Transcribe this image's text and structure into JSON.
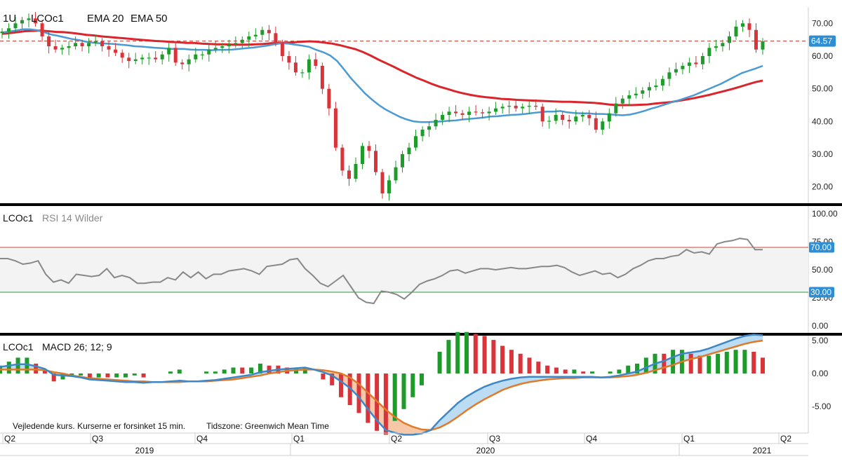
{
  "colors": {
    "up": "#1e9b2a",
    "down": "#d9343a",
    "ema20": "#4a9ad4",
    "ema50": "#d9252b",
    "rsi": "#888888",
    "macd": "#3d87c9",
    "signal": "#e07a2a",
    "ref_line": "#c0392b",
    "badge": "#2c8fd6"
  },
  "main_panel": {
    "interval": "1U",
    "ric": "LCOc1",
    "ema20_label": "EMA 20",
    "ema50_label": "EMA 50",
    "y_ticks": [
      "70.00",
      "60.00",
      "50.00",
      "40.00",
      "30.00",
      "20.00"
    ],
    "last_price_badge": "64.57"
  },
  "rsi_panel": {
    "ric": "LCOc1",
    "label": "RSI 14 Wilder",
    "y_ticks": [
      "100.00",
      "75.00",
      "50.00",
      "25.00",
      "0.00"
    ],
    "upper_badge": "70.00",
    "lower_badge": "30.00"
  },
  "macd_panel": {
    "ric": "LCOc1",
    "label": "MACD 26; 12; 9",
    "y_ticks": [
      "5.00",
      "0.00",
      "-5.00"
    ]
  },
  "footer": {
    "disclaimer": "Vejledende kurs. Kurserne er forsinket 15 min.",
    "timezone": "Tidszone: Greenwich Mean Time"
  },
  "x_axis": {
    "periods": [
      "Q2",
      "Q3",
      "Q4",
      "Q1",
      "Q2",
      "Q3",
      "Q4",
      "Q1",
      "Q2"
    ],
    "years": [
      "2019",
      "2020",
      "2021"
    ]
  },
  "chart_data": [
    {
      "type": "candlestick",
      "title": "LCOc1",
      "interval": "1U",
      "x_range": [
        "2019-04",
        "2021-03"
      ],
      "ylim": [
        15,
        75
      ],
      "y_ticks": [
        70,
        60,
        50,
        40,
        30,
        20
      ],
      "reference_line": {
        "value": 64.57,
        "style": "dashed"
      },
      "close": [
        67.5,
        68.5,
        70,
        71,
        71.5,
        70,
        66,
        63,
        62,
        62.5,
        63,
        64,
        63,
        64,
        64.5,
        63,
        62,
        61,
        59.5,
        58.5,
        59,
        59.5,
        59.5,
        59,
        60.5,
        62.5,
        58,
        57.5,
        59,
        60.5,
        60.5,
        62,
        62.5,
        63,
        63.5,
        64,
        65,
        66,
        66.5,
        68,
        67,
        64,
        60,
        58,
        55,
        55,
        59,
        57,
        50,
        44,
        32,
        25,
        22.5,
        27,
        32.5,
        31,
        24.5,
        18,
        22,
        26,
        30,
        32,
        35.5,
        37.5,
        38.5,
        40.5,
        42,
        43,
        42.5,
        42,
        43,
        42.8,
        42.5,
        43,
        44,
        44.5,
        44.8,
        44,
        44.5,
        44.8,
        44.5,
        40,
        40.2,
        42,
        40.5,
        40,
        41.5,
        42,
        41,
        37.5,
        40,
        42.5,
        45.5,
        47,
        48,
        48.5,
        49.5,
        50.5,
        51,
        53,
        55,
        56,
        57,
        58,
        57.5,
        60,
        62.5,
        63,
        64,
        66,
        69,
        70,
        68,
        62,
        64.5
      ],
      "ema20": [
        67.2,
        67.5,
        67.8,
        68.2,
        68.2,
        67.9,
        67.3,
        66.6,
        66.2,
        65.7,
        65.2,
        64.9,
        64.4,
        64.1,
        63.9,
        63.8,
        63.7,
        63.5,
        63.3,
        63,
        62.9,
        62.7,
        62.5,
        62.4,
        62.2,
        62.2,
        62.2,
        62,
        61.9,
        61.9,
        61.8,
        61.9,
        61.9,
        62,
        62.2,
        62.4,
        62.6,
        62.9,
        63.2,
        63.6,
        63.9,
        63.8,
        63.5,
        63.2,
        62.8,
        61.9,
        61.2,
        60.2,
        58.5,
        55.9,
        53.2,
        50.9,
        48.6,
        46.7,
        45,
        43.6,
        42.5,
        41.4,
        40.6,
        40,
        39.8,
        39.8,
        39.9,
        40,
        40.2,
        40.3,
        40.6,
        40.8,
        41,
        41.2,
        41.5,
        41.6,
        41.8,
        42,
        42.1,
        42.3,
        42.6,
        42.8,
        43,
        43,
        43.2,
        42.8,
        42.6,
        42.5,
        42.5,
        42.3,
        42.3,
        42.2,
        42,
        41.9,
        42.1,
        42.6,
        43.2,
        43.9,
        44.5,
        45.2,
        45.9,
        46.5,
        47.2,
        47.9,
        48.8,
        49.7,
        50.6,
        51.5,
        52.6,
        53.7,
        54.8,
        55.5,
        56.2,
        57
      ],
      "ema50": [
        66.8,
        67,
        67.3,
        67.6,
        67.7,
        67.8,
        67.6,
        67.4,
        67.3,
        67.1,
        66.8,
        66.5,
        66.3,
        66,
        65.8,
        65.6,
        65.4,
        65.2,
        65,
        64.8,
        64.6,
        64.5,
        64.3,
        64.2,
        64,
        64,
        63.8,
        63.7,
        63.6,
        63.6,
        63.5,
        63.5,
        63.5,
        63.6,
        63.7,
        63.9,
        64,
        64.1,
        64.2,
        64.4,
        64.5,
        64.4,
        64.1,
        63.8,
        63.3,
        62.7,
        62.1,
        61.2,
        60.1,
        58.9,
        57.8,
        56.7,
        55.5,
        54.4,
        53.3,
        52.4,
        51.4,
        50.6,
        49.9,
        49.2,
        48.6,
        48.1,
        47.7,
        47.4,
        47.2,
        46.9,
        46.8,
        46.6,
        46.5,
        46.4,
        46.3,
        46.2,
        46.1,
        46,
        46,
        45.9,
        45.8,
        45.7,
        45.5,
        45.2,
        45,
        45,
        45,
        45.1,
        45.2,
        45.5,
        45.7,
        45.9,
        46.3,
        46.7,
        47.1,
        47.6,
        48.1,
        48.7,
        49.3,
        49.9,
        50.6,
        51.3,
        52,
        52.5
      ]
    },
    {
      "type": "line",
      "title": "RSI 14 Wilder",
      "ylim": [
        0,
        100
      ],
      "y_ticks": [
        100,
        75,
        50,
        25,
        0
      ],
      "reference_lines": [
        70,
        30
      ],
      "values": [
        60,
        60,
        58,
        55,
        56,
        58,
        46,
        39,
        41,
        38,
        46,
        45,
        44,
        45,
        51,
        43,
        45,
        43,
        38,
        38,
        39,
        39,
        43,
        41,
        48,
        43,
        48,
        42,
        46,
        46,
        49,
        50,
        51,
        49,
        46,
        53,
        54,
        55,
        59,
        60,
        51,
        45,
        38,
        35,
        40,
        45,
        35,
        25,
        21,
        20,
        31,
        30,
        28,
        24,
        30,
        37,
        40,
        42,
        45,
        49,
        50,
        47,
        49,
        51,
        51,
        50,
        51,
        52,
        51,
        51,
        52,
        53,
        53,
        54,
        52,
        48,
        45,
        47,
        49,
        46,
        47,
        43,
        46,
        51,
        54,
        58,
        60,
        60,
        62,
        63,
        68,
        65,
        66,
        64,
        73,
        75,
        76,
        78,
        77,
        68,
        68
      ],
      "last_value": 68
    },
    {
      "type": "line",
      "title": "MACD 26; 12; 9",
      "ylim": [
        -10,
        6.5
      ],
      "y_ticks": [
        5,
        0,
        -5
      ],
      "series": [
        {
          "name": "MACD",
          "values": [
            1,
            1.2,
            1.4,
            1.4,
            1.1,
            0.7,
            -0.2,
            -0.3,
            -0.4,
            -0.6,
            -0.9,
            -1,
            -1.1,
            -1.2,
            -1.3,
            -1.3,
            -1.4,
            -1.3,
            -1.3,
            -1.2,
            -1.1,
            -1.2,
            -1.2,
            -1.1,
            -1,
            -0.8,
            -0.6,
            -0.4,
            -0.2,
            0.2,
            0.4,
            0.6,
            0.7,
            0.8,
            0.9,
            0.6,
            0.2,
            -0.3,
            -1.2,
            -2.2,
            -3.6,
            -5.4,
            -7.1,
            -8.6,
            -9,
            -9.3,
            -9.3,
            -9.1,
            -8.6,
            -7.1,
            -5.8,
            -4.5,
            -3.5,
            -2.7,
            -2,
            -1.5,
            -1.1,
            -0.8,
            -0.6,
            -0.5,
            -0.5,
            -0.5,
            -0.5,
            -0.5,
            -0.5,
            -0.5,
            -0.5,
            -0.6,
            -0.5,
            -0.3,
            0,
            0.3,
            0.9,
            1.5,
            1.9,
            2.5,
            3,
            3.2,
            3.4,
            3.8,
            4.3,
            4.8,
            5.3,
            5.7,
            5.9,
            5.8
          ]
        },
        {
          "name": "Signal",
          "values": [
            0.6,
            0.6,
            0.6,
            0.6,
            0.6,
            0.5,
            0.2,
            0,
            -0.3,
            -0.5,
            -0.7,
            -0.8,
            -0.9,
            -1,
            -1.1,
            -1.2,
            -1.2,
            -1.3,
            -1.3,
            -1.3,
            -1.3,
            -1.2,
            -1.2,
            -1.2,
            -1.1,
            -1,
            -0.9,
            -0.7,
            -0.5,
            -0.3,
            0,
            0.2,
            0.4,
            0.5,
            0.6,
            0.6,
            0.5,
            0.3,
            0,
            -0.6,
            -1.6,
            -2.9,
            -4.2,
            -5.5,
            -6.6,
            -7.5,
            -8.1,
            -8.5,
            -8.6,
            -8.2,
            -7.5,
            -6.6,
            -5.6,
            -4.7,
            -3.9,
            -3.2,
            -2.5,
            -2,
            -1.6,
            -1.3,
            -1.1,
            -0.9,
            -0.8,
            -0.7,
            -0.7,
            -0.6,
            -0.6,
            -0.6,
            -0.6,
            -0.5,
            -0.4,
            -0.2,
            0.1,
            0.5,
            0.9,
            1.3,
            1.8,
            2.2,
            2.5,
            2.9,
            3.3,
            3.7,
            4.1,
            4.5,
            4.8,
            5
          ]
        }
      ]
    }
  ]
}
